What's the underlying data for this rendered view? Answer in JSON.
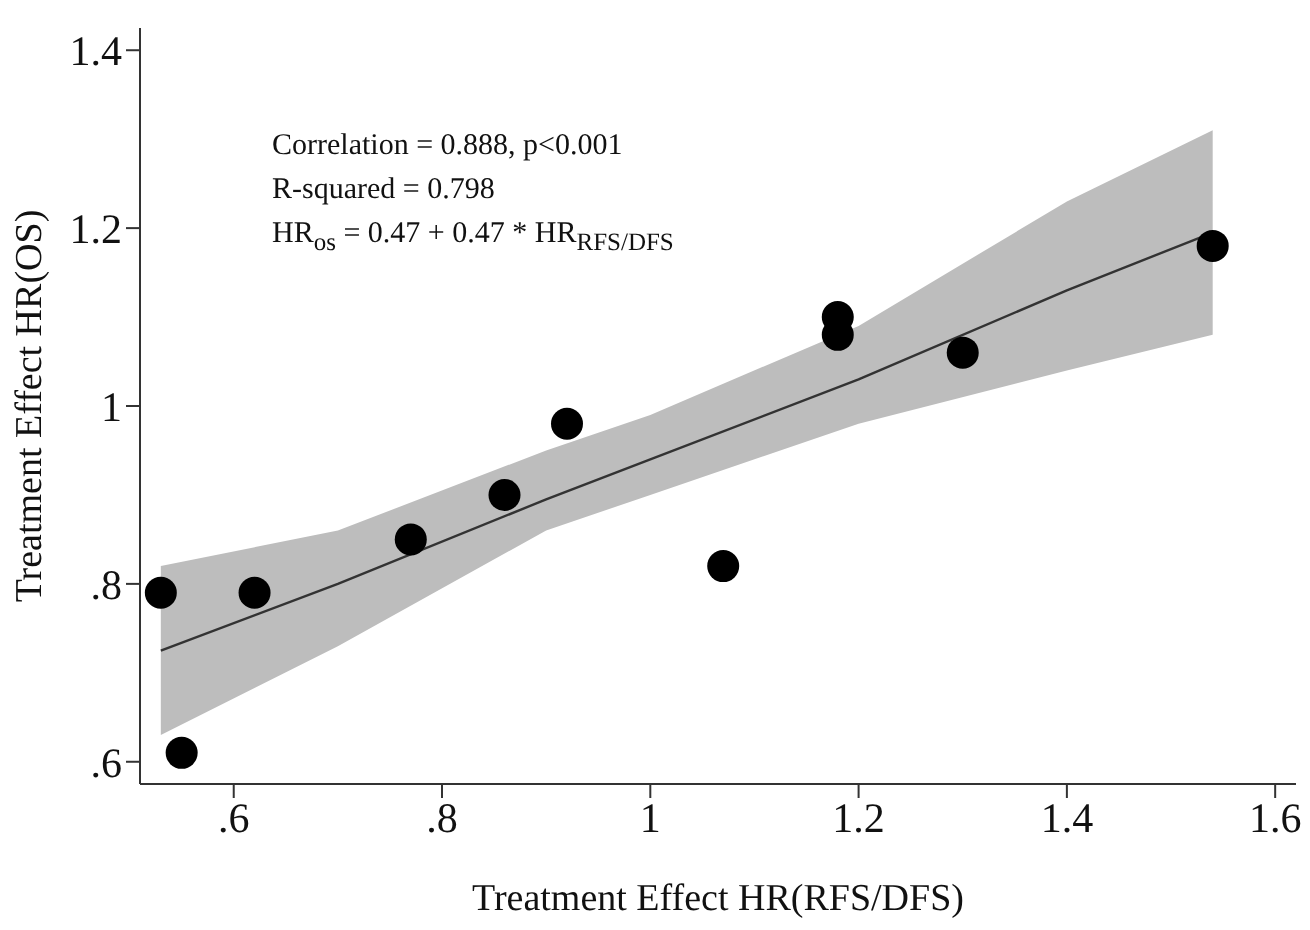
{
  "chart_data": {
    "type": "scatter",
    "xlabel": "Treatment Effect HR(RFS/DFS)",
    "ylabel": "Treatment Effect HR(OS)",
    "xlim": [
      0.51,
      1.62
    ],
    "ylim": [
      0.575,
      1.425
    ],
    "xticks": [
      {
        "value": 0.6,
        "label": ".6"
      },
      {
        "value": 0.8,
        "label": ".8"
      },
      1,
      1.2,
      1.4,
      1.6
    ],
    "yticks": [
      {
        "value": 0.6,
        "label": ".6"
      },
      {
        "value": 0.8,
        "label": ".8"
      },
      1,
      1.2,
      1.4
    ],
    "annotations": [
      "Correlation = 0.888, p<0.001",
      "R-squared =  0.798",
      "HR$_{os}$ = 0.47 + 0.47 * HR$_{RFS/DFS}$"
    ],
    "series": [
      {
        "marker": "circle",
        "color": "#000000",
        "x": [
          0.53,
          0.55,
          0.62,
          0.77,
          0.86,
          0.92,
          1.07,
          1.18,
          1.18,
          1.3,
          1.54
        ],
        "values": [
          0.79,
          0.61,
          0.79,
          0.85,
          0.9,
          0.98,
          0.82,
          1.1,
          1.08,
          1.06,
          1.18
        ]
      },
      {
        "type": "line",
        "marker": "none",
        "color": "#333333",
        "x": [
          0.53,
          0.7,
          0.9,
          1.0,
          1.2,
          1.4,
          1.54
        ],
        "values": [
          0.725,
          0.8,
          0.895,
          0.94,
          1.03,
          1.13,
          1.195
        ],
        "lower": [
          0.63,
          0.73,
          0.86,
          0.9,
          0.98,
          1.04,
          1.08
        ],
        "upper": [
          0.82,
          0.86,
          0.95,
          0.99,
          1.09,
          1.23,
          1.31
        ]
      }
    ]
  }
}
